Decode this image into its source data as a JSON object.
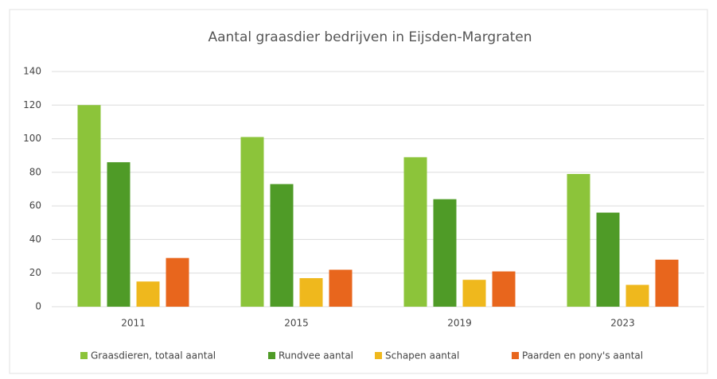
{
  "chart_data": {
    "type": "bar",
    "title": "Aantal graasdier bedrijven in Eijsden-Margraten",
    "categories": [
      "2011",
      "2015",
      "2019",
      "2023"
    ],
    "series": [
      {
        "name": "Graasdieren, totaal aantal",
        "color": "#8cc43a",
        "values": [
          120,
          101,
          89,
          79
        ]
      },
      {
        "name": "Rundvee aantal",
        "color": "#4f9b27",
        "values": [
          86,
          73,
          64,
          56
        ]
      },
      {
        "name": "Schapen aantal",
        "color": "#efb81d",
        "values": [
          15,
          17,
          16,
          13
        ]
      },
      {
        "name": "Paarden en pony's aantal",
        "color": "#e8661d",
        "values": [
          29,
          22,
          21,
          28
        ]
      }
    ],
    "ylim": [
      0,
      140
    ],
    "yticks": [
      0,
      20,
      40,
      60,
      80,
      100,
      120,
      140
    ],
    "grid": true,
    "legend": "bottom"
  }
}
